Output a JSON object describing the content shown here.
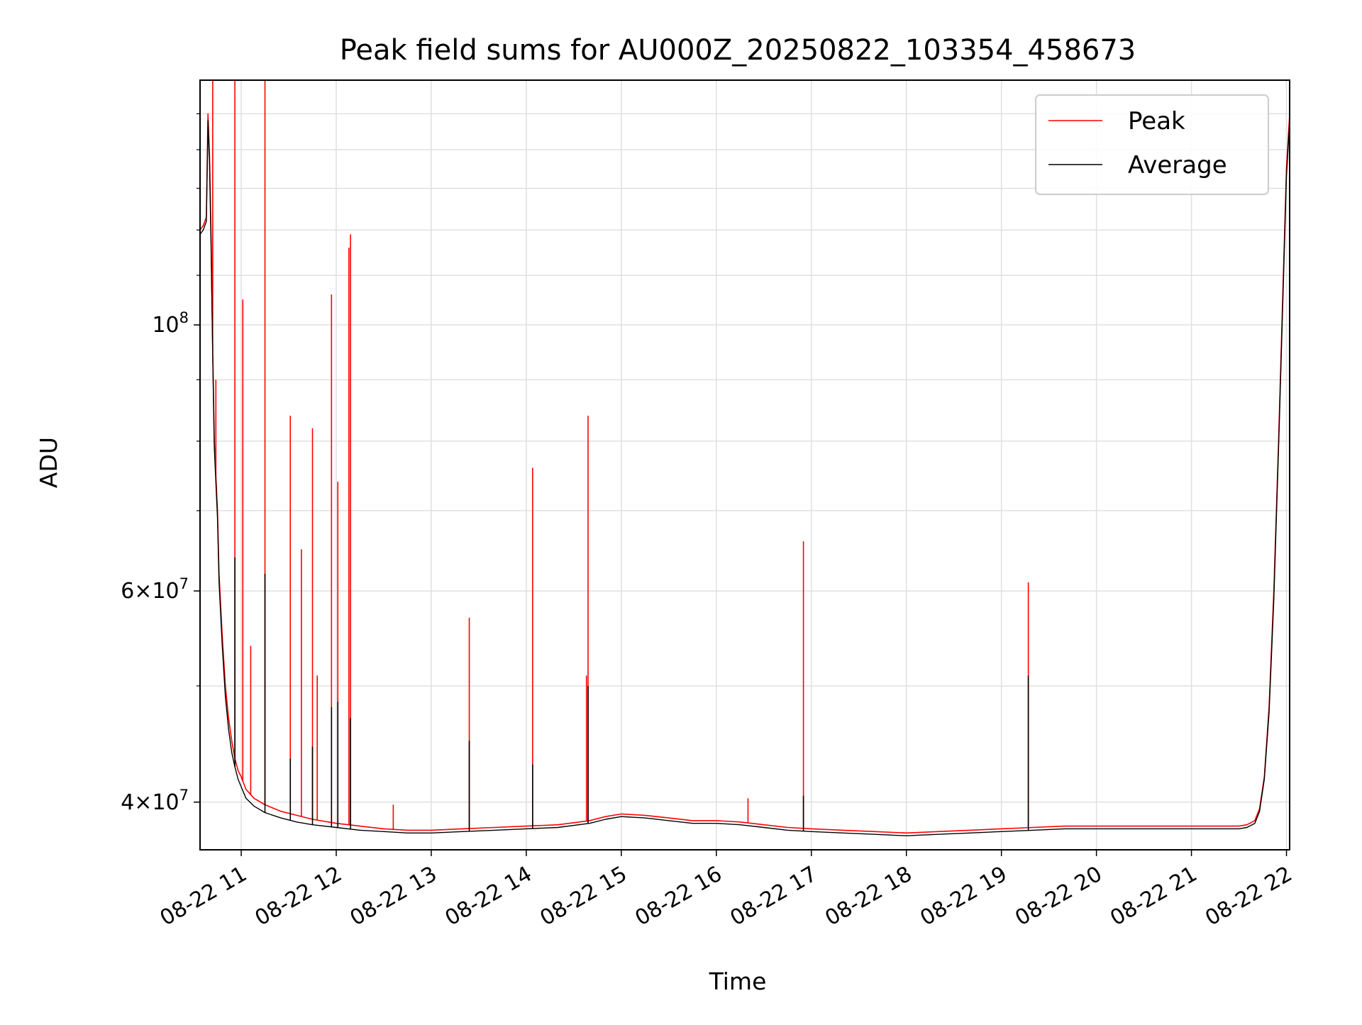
{
  "chart_data": {
    "type": "line",
    "title": "Peak field sums for AU000Z_20250822_103354_458673",
    "xlabel": "Time",
    "ylabel": "ADU",
    "yscale": "log",
    "ylim": [
      36500000,
      160000000
    ],
    "xlim": [
      "08-22 10:34",
      "08-22 22:02"
    ],
    "grid": true,
    "legend_position": "top-right",
    "x_ticks": [
      {
        "label": "08-22 11",
        "time": "08-22 11:00"
      },
      {
        "label": "08-22 12",
        "time": "08-22 12:00"
      },
      {
        "label": "08-22 13",
        "time": "08-22 13:00"
      },
      {
        "label": "08-22 14",
        "time": "08-22 14:00"
      },
      {
        "label": "08-22 15",
        "time": "08-22 15:00"
      },
      {
        "label": "08-22 16",
        "time": "08-22 16:00"
      },
      {
        "label": "08-22 17",
        "time": "08-22 17:00"
      },
      {
        "label": "08-22 18",
        "time": "08-22 18:00"
      },
      {
        "label": "08-22 19",
        "time": "08-22 19:00"
      },
      {
        "label": "08-22 20",
        "time": "08-22 20:00"
      },
      {
        "label": "08-22 21",
        "time": "08-22 21:00"
      },
      {
        "label": "08-22 22",
        "time": "08-22 22:00"
      }
    ],
    "y_ticks": [
      {
        "mantissa": "4",
        "exponent": "7",
        "value": 40000000
      },
      {
        "mantissa": "6",
        "exponent": "7",
        "value": 60000000
      },
      {
        "mantissa": "",
        "exponent": "8",
        "value": 100000000
      }
    ],
    "series": [
      {
        "name": "Peak",
        "color": "#ff0000",
        "x": [
          "08-22 10:34",
          "08-22 10:36",
          "08-22 10:38",
          "08-22 10:39",
          "08-22 10:40",
          "08-22 10:41",
          "08-22 10:42",
          "08-22 10:43",
          "08-22 10:45",
          "08-22 10:46",
          "08-22 10:48",
          "08-22 10:50",
          "08-22 10:52",
          "08-22 10:54",
          "08-22 10:56",
          "08-22 10:58",
          "08-22 11:00",
          "08-22 11:03",
          "08-22 11:08",
          "08-22 11:15",
          "08-22 11:25",
          "08-22 11:35",
          "08-22 11:45",
          "08-22 12:00",
          "08-22 12:15",
          "08-22 12:30",
          "08-22 12:45",
          "08-22 13:00",
          "08-22 13:20",
          "08-22 13:40",
          "08-22 14:00",
          "08-22 14:20",
          "08-22 14:40",
          "08-22 14:50",
          "08-22 15:00",
          "08-22 15:15",
          "08-22 15:30",
          "08-22 15:45",
          "08-22 16:00",
          "08-22 16:15",
          "08-22 16:30",
          "08-22 16:45",
          "08-22 17:00",
          "08-22 17:20",
          "08-22 17:40",
          "08-22 18:00",
          "08-22 18:20",
          "08-22 18:40",
          "08-22 19:00",
          "08-22 19:20",
          "08-22 19:40",
          "08-22 20:00",
          "08-22 20:20",
          "08-22 20:40",
          "08-22 21:00",
          "08-22 21:20",
          "08-22 21:30",
          "08-22 21:35",
          "08-22 21:40",
          "08-22 21:43",
          "08-22 21:46",
          "08-22 21:49",
          "08-22 21:52",
          "08-22 21:55",
          "08-22 21:58",
          "08-22 22:00",
          "08-22 22:02"
        ],
        "y": [
          120000000,
          121000000,
          123000000,
          150000000,
          138000000,
          118000000,
          95000000,
          80000000,
          70000000,
          62000000,
          55000000,
          50000000,
          47000000,
          45000000,
          43500000,
          42500000,
          42000000,
          41000000,
          40300000,
          39800000,
          39300000,
          39000000,
          38700000,
          38400000,
          38200000,
          38000000,
          37900000,
          37900000,
          38000000,
          38100000,
          38200000,
          38300000,
          38600000,
          38900000,
          39100000,
          39000000,
          38800000,
          38600000,
          38600000,
          38500000,
          38300000,
          38100000,
          38000000,
          37900000,
          37800000,
          37700000,
          37800000,
          37900000,
          38000000,
          38100000,
          38200000,
          38200000,
          38200000,
          38200000,
          38200000,
          38200000,
          38200000,
          38300000,
          38600000,
          39500000,
          42000000,
          48000000,
          60000000,
          80000000,
          110000000,
          135000000,
          150000000
        ],
        "spikes": [
          {
            "x": "08-22 10:42",
            "y": 160000000
          },
          {
            "x": "08-22 10:44",
            "y": 90000000
          },
          {
            "x": "08-22 10:56",
            "y": 160000000
          },
          {
            "x": "08-22 11:01",
            "y": 105000000
          },
          {
            "x": "08-22 11:06",
            "y": 54000000
          },
          {
            "x": "08-22 11:15",
            "y": 160000000
          },
          {
            "x": "08-22 11:31",
            "y": 84000000
          },
          {
            "x": "08-22 11:38",
            "y": 65000000
          },
          {
            "x": "08-22 11:45",
            "y": 82000000
          },
          {
            "x": "08-22 11:48",
            "y": 51000000
          },
          {
            "x": "08-22 11:57",
            "y": 106000000
          },
          {
            "x": "08-22 12:01",
            "y": 74000000
          },
          {
            "x": "08-22 12:08",
            "y": 116000000
          },
          {
            "x": "08-22 12:09",
            "y": 119000000
          },
          {
            "x": "08-22 12:36",
            "y": 39800000
          },
          {
            "x": "08-22 13:24",
            "y": 57000000
          },
          {
            "x": "08-22 14:04",
            "y": 76000000
          },
          {
            "x": "08-22 14:38",
            "y": 51000000
          },
          {
            "x": "08-22 14:39",
            "y": 84000000
          },
          {
            "x": "08-22 16:20",
            "y": 40300000
          },
          {
            "x": "08-22 16:55",
            "y": 66000000
          },
          {
            "x": "08-22 19:17",
            "y": 61000000
          }
        ]
      },
      {
        "name": "Average",
        "color": "#000000",
        "x": [
          "08-22 10:34",
          "08-22 10:36",
          "08-22 10:38",
          "08-22 10:39",
          "08-22 10:40",
          "08-22 10:41",
          "08-22 10:42",
          "08-22 10:43",
          "08-22 10:45",
          "08-22 10:46",
          "08-22 10:48",
          "08-22 10:50",
          "08-22 10:52",
          "08-22 10:54",
          "08-22 10:56",
          "08-22 10:58",
          "08-22 11:00",
          "08-22 11:03",
          "08-22 11:08",
          "08-22 11:15",
          "08-22 11:25",
          "08-22 11:35",
          "08-22 11:45",
          "08-22 12:00",
          "08-22 12:15",
          "08-22 12:30",
          "08-22 12:45",
          "08-22 13:00",
          "08-22 13:20",
          "08-22 13:40",
          "08-22 14:00",
          "08-22 14:20",
          "08-22 14:40",
          "08-22 14:50",
          "08-22 15:00",
          "08-22 15:15",
          "08-22 15:30",
          "08-22 15:45",
          "08-22 16:00",
          "08-22 16:15",
          "08-22 16:30",
          "08-22 16:45",
          "08-22 17:00",
          "08-22 17:20",
          "08-22 17:40",
          "08-22 18:00",
          "08-22 18:20",
          "08-22 18:40",
          "08-22 19:00",
          "08-22 19:20",
          "08-22 19:40",
          "08-22 20:00",
          "08-22 20:20",
          "08-22 20:40",
          "08-22 21:00",
          "08-22 21:20",
          "08-22 21:30",
          "08-22 21:35",
          "08-22 21:40",
          "08-22 21:43",
          "08-22 21:46",
          "08-22 21:49",
          "08-22 21:52",
          "08-22 21:55",
          "08-22 21:58",
          "08-22 22:00",
          "08-22 22:02"
        ],
        "y": [
          119000000,
          120000000,
          122000000,
          148000000,
          136000000,
          116000000,
          94000000,
          79000000,
          69000000,
          61000000,
          54000000,
          49000000,
          46000000,
          44000000,
          42800000,
          41800000,
          41200000,
          40300000,
          39700000,
          39200000,
          38800000,
          38500000,
          38300000,
          38100000,
          37900000,
          37800000,
          37700000,
          37700000,
          37800000,
          37900000,
          38000000,
          38100000,
          38400000,
          38700000,
          38900000,
          38800000,
          38600000,
          38400000,
          38400000,
          38300000,
          38100000,
          37900000,
          37800000,
          37700000,
          37600000,
          37500000,
          37600000,
          37700000,
          37800000,
          37900000,
          38000000,
          38000000,
          38000000,
          38000000,
          38000000,
          38000000,
          38000000,
          38100000,
          38400000,
          39300000,
          41800000,
          47500000,
          59000000,
          79000000,
          108000000,
          133000000,
          148000000
        ],
        "spikes": [
          {
            "x": "08-22 10:56",
            "y": 64000000
          },
          {
            "x": "08-22 11:15",
            "y": 62000000
          },
          {
            "x": "08-22 11:31",
            "y": 43500000
          },
          {
            "x": "08-22 11:45",
            "y": 44500000
          },
          {
            "x": "08-22 11:57",
            "y": 48000000
          },
          {
            "x": "08-22 12:01",
            "y": 48500000
          },
          {
            "x": "08-22 12:09",
            "y": 47000000
          },
          {
            "x": "08-22 13:24",
            "y": 45000000
          },
          {
            "x": "08-22 14:04",
            "y": 43000000
          },
          {
            "x": "08-22 14:39",
            "y": 50000000
          },
          {
            "x": "08-22 16:55",
            "y": 40500000
          },
          {
            "x": "08-22 19:17",
            "y": 51000000
          }
        ]
      }
    ]
  }
}
